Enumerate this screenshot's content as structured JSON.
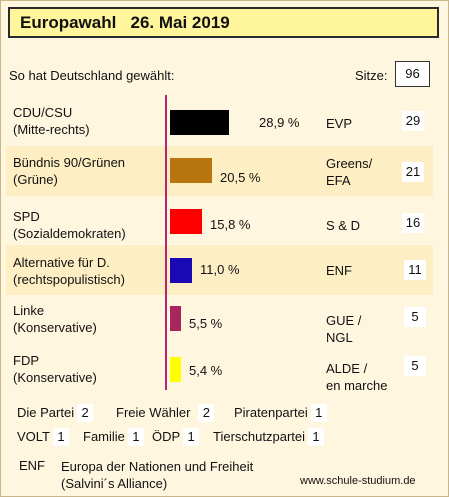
{
  "header": {
    "title": "Europawahl   26. Mai 2019"
  },
  "intro": {
    "text": "So hat Deutschland gewählt:",
    "seats_label": "Sitze:",
    "seats_total": "96"
  },
  "parties": [
    {
      "name": "CDU/CSU",
      "sub": "(Mitte-rechts)",
      "percent": "28,9 %",
      "value": 28.9,
      "color": "#000000",
      "group_line1": "EVP",
      "group_line2": "",
      "seats": "29"
    },
    {
      "name": "Bündnis 90/Grünen",
      "sub": "(Grüne)",
      "percent": "20,5 %",
      "value": 20.5,
      "color": "#b8740e",
      "group_line1": "Greens/",
      "group_line2": "EFA",
      "seats": "21"
    },
    {
      "name": "SPD",
      "sub": "(Sozialdemokraten)",
      "percent": "15,8 %",
      "value": 15.8,
      "color": "#ff0000",
      "group_line1": "S & D",
      "group_line2": "",
      "seats": "16"
    },
    {
      "name": "Alternative für D.",
      "sub": "(rechtspopulistisch)",
      "percent": "11,0 %",
      "value": 11.0,
      "color": "#1a08b4",
      "group_line1": "ENF",
      "group_line2": "",
      "seats": "11"
    },
    {
      "name": "Linke",
      "sub": "(Konservative)",
      "percent": "5,5 %",
      "value": 5.5,
      "color": "#a8255e",
      "group_line1": "GUE /",
      "group_line2": "NGL",
      "seats": "5"
    },
    {
      "name": "FDP",
      "sub": "(Konservative)",
      "percent": "5,4 %",
      "value": 5.4,
      "color": "#ffff00",
      "group_line1": "ALDE /",
      "group_line2": "en marche",
      "seats": "5"
    }
  ],
  "others_row1": [
    {
      "name": "Die Partei",
      "seats": "2"
    },
    {
      "name": "Freie Wähler",
      "seats": "2"
    },
    {
      "name": "Piratenpartei",
      "seats": "1"
    }
  ],
  "others_row2": [
    {
      "name": "VOLT",
      "seats": "1"
    },
    {
      "name": "Familie",
      "seats": "1"
    },
    {
      "name": "ÖDP",
      "seats": "1"
    },
    {
      "name": "Tierschutzpartei",
      "seats": "1"
    }
  ],
  "footnote": {
    "abbr": "ENF",
    "line1": "Europa der Nationen und Freiheit",
    "line2": "(Salvini´s Alliance)"
  },
  "site": "www.schule-studium.de"
}
